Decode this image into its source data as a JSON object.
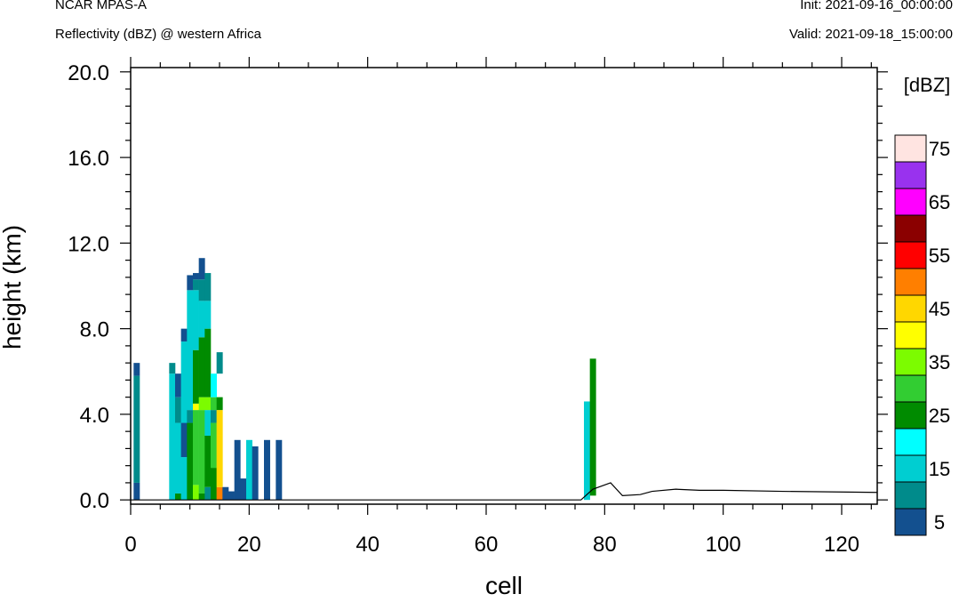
{
  "header": {
    "model": "NCAR MPAS-A",
    "field": "Reflectivity (dBZ) @ western Africa",
    "init": "Init: 2021-09-16_00:00:00",
    "valid": "Valid: 2021-09-18_15:00:00"
  },
  "chart_data": {
    "type": "heatmap",
    "title": "Reflectivity (dBZ) @ western Africa",
    "xlabel": "cell",
    "ylabel": "height (km)",
    "xlim": [
      0,
      126
    ],
    "ylim": [
      -0.2,
      20.2
    ],
    "x_ticks": [
      0,
      20,
      40,
      60,
      80,
      100,
      120
    ],
    "y_ticks": [
      0.0,
      4.0,
      8.0,
      12.0,
      16.0,
      20.0
    ],
    "y_tick_labels": [
      "0.0",
      "4.0",
      "8.0",
      "12.0",
      "16.0",
      "20.0"
    ],
    "colorbar": {
      "unit_label": "[dBZ]",
      "levels": [
        5,
        10,
        15,
        20,
        25,
        30,
        35,
        40,
        45,
        50,
        55,
        60,
        65,
        70,
        75
      ],
      "labels": [
        "5",
        "15",
        "25",
        "35",
        "45",
        "55",
        "65",
        "75"
      ],
      "colors": [
        "#13508f",
        "#008b8b",
        "#00ced1",
        "#00ffff",
        "#008b00",
        "#32cd32",
        "#7cfc00",
        "#ffff00",
        "#ffd700",
        "#ff7f00",
        "#ff0000",
        "#8b0000",
        "#ff00ff",
        "#9932ee",
        "#ffe4e1"
      ]
    },
    "cells": [
      {
        "x": 1,
        "y0": 0.0,
        "y1": 0.8,
        "dbz": 5
      },
      {
        "x": 1,
        "y0": 0.8,
        "y1": 5.8,
        "dbz": 10
      },
      {
        "x": 1,
        "y0": 5.8,
        "y1": 6.4,
        "dbz": 5
      },
      {
        "x": 7,
        "y0": 0.0,
        "y1": 5.9,
        "dbz": 15
      },
      {
        "x": 7,
        "y0": 5.9,
        "y1": 6.4,
        "dbz": 10
      },
      {
        "x": 8,
        "y0": 0.0,
        "y1": 0.3,
        "dbz": 25
      },
      {
        "x": 8,
        "y0": 0.3,
        "y1": 3.6,
        "dbz": 15
      },
      {
        "x": 8,
        "y0": 3.6,
        "y1": 4.8,
        "dbz": 10
      },
      {
        "x": 8,
        "y0": 4.8,
        "y1": 5.9,
        "dbz": 5
      },
      {
        "x": 9,
        "y0": 0.0,
        "y1": 2.0,
        "dbz": 15
      },
      {
        "x": 9,
        "y0": 2.0,
        "y1": 3.6,
        "dbz": 5
      },
      {
        "x": 9,
        "y0": 3.6,
        "y1": 7.4,
        "dbz": 15
      },
      {
        "x": 9,
        "y0": 7.4,
        "y1": 8.0,
        "dbz": 5
      },
      {
        "x": 10,
        "y0": 0.0,
        "y1": 3.6,
        "dbz": 25
      },
      {
        "x": 10,
        "y0": 3.6,
        "y1": 4.2,
        "dbz": 10
      },
      {
        "x": 10,
        "y0": 4.2,
        "y1": 9.8,
        "dbz": 15
      },
      {
        "x": 10,
        "y0": 9.8,
        "y1": 10.5,
        "dbz": 5
      },
      {
        "x": 11,
        "y0": 0.0,
        "y1": 0.7,
        "dbz": 35
      },
      {
        "x": 11,
        "y0": 0.7,
        "y1": 4.2,
        "dbz": 30
      },
      {
        "x": 11,
        "y0": 4.2,
        "y1": 4.5,
        "dbz": 40
      },
      {
        "x": 11,
        "y0": 4.5,
        "y1": 7.0,
        "dbz": 25
      },
      {
        "x": 11,
        "y0": 7.0,
        "y1": 9.8,
        "dbz": 15
      },
      {
        "x": 11,
        "y0": 9.8,
        "y1": 10.3,
        "dbz": 10
      },
      {
        "x": 11,
        "y0": 10.3,
        "y1": 10.6,
        "dbz": 5
      },
      {
        "x": 12,
        "y0": 0.0,
        "y1": 0.3,
        "dbz": 25
      },
      {
        "x": 12,
        "y0": 0.3,
        "y1": 4.2,
        "dbz": 30
      },
      {
        "x": 12,
        "y0": 4.2,
        "y1": 4.8,
        "dbz": 35
      },
      {
        "x": 12,
        "y0": 4.8,
        "y1": 7.6,
        "dbz": 25
      },
      {
        "x": 12,
        "y0": 7.6,
        "y1": 9.3,
        "dbz": 15
      },
      {
        "x": 12,
        "y0": 9.3,
        "y1": 10.3,
        "dbz": 10
      },
      {
        "x": 12,
        "y0": 10.3,
        "y1": 11.3,
        "dbz": 5
      },
      {
        "x": 13,
        "y0": 0.0,
        "y1": 0.6,
        "dbz": 10
      },
      {
        "x": 13,
        "y0": 0.6,
        "y1": 3.0,
        "dbz": 25
      },
      {
        "x": 13,
        "y0": 3.0,
        "y1": 4.2,
        "dbz": 15
      },
      {
        "x": 13,
        "y0": 4.2,
        "y1": 4.8,
        "dbz": 35
      },
      {
        "x": 13,
        "y0": 4.8,
        "y1": 8.0,
        "dbz": 25
      },
      {
        "x": 13,
        "y0": 8.0,
        "y1": 9.3,
        "dbz": 15
      },
      {
        "x": 13,
        "y0": 9.3,
        "y1": 10.6,
        "dbz": 10
      },
      {
        "x": 14,
        "y0": 0.0,
        "y1": 1.5,
        "dbz": 25
      },
      {
        "x": 14,
        "y0": 1.5,
        "y1": 3.6,
        "dbz": 30
      },
      {
        "x": 14,
        "y0": 3.6,
        "y1": 4.2,
        "dbz": 10
      },
      {
        "x": 14,
        "y0": 4.2,
        "y1": 4.8,
        "dbz": 30
      },
      {
        "x": 14,
        "y0": 4.8,
        "y1": 5.9,
        "dbz": 20
      },
      {
        "x": 15,
        "y0": 0.0,
        "y1": 0.6,
        "dbz": 50
      },
      {
        "x": 15,
        "y0": 0.6,
        "y1": 3.0,
        "dbz": 45
      },
      {
        "x": 15,
        "y0": 3.0,
        "y1": 4.2,
        "dbz": 45
      },
      {
        "x": 15,
        "y0": 4.2,
        "y1": 4.8,
        "dbz": 25
      },
      {
        "x": 15,
        "y0": 5.9,
        "y1": 6.9,
        "dbz": 10
      },
      {
        "x": 16,
        "y0": 0.0,
        "y1": 0.6,
        "dbz": 5
      },
      {
        "x": 17,
        "y0": 0.0,
        "y1": 0.4,
        "dbz": 5
      },
      {
        "x": 18,
        "y0": 0.0,
        "y1": 2.8,
        "dbz": 5
      },
      {
        "x": 19,
        "y0": 0.0,
        "y1": 1.0,
        "dbz": 5
      },
      {
        "x": 20,
        "y0": 0.0,
        "y1": 2.8,
        "dbz": 15
      },
      {
        "x": 21,
        "y0": 0.0,
        "y1": 2.5,
        "dbz": 5
      },
      {
        "x": 23,
        "y0": 0.0,
        "y1": 2.8,
        "dbz": 5
      },
      {
        "x": 25,
        "y0": 0.0,
        "y1": 2.8,
        "dbz": 5
      },
      {
        "x": 77,
        "y0": 0.0,
        "y1": 4.6,
        "dbz": 15
      },
      {
        "x": 78,
        "y0": 0.2,
        "y1": 6.6,
        "dbz": 25
      }
    ],
    "terrain": {
      "x": [
        0,
        76,
        78,
        81,
        83,
        86,
        88,
        92,
        96,
        100,
        110,
        126
      ],
      "y": [
        0.0,
        0.0,
        0.5,
        0.8,
        0.2,
        0.25,
        0.4,
        0.5,
        0.45,
        0.45,
        0.4,
        0.35
      ]
    }
  }
}
